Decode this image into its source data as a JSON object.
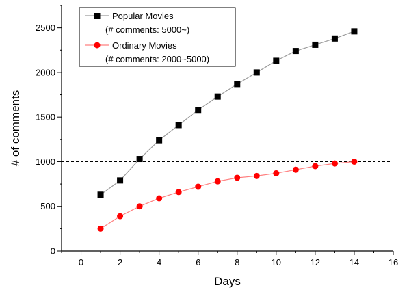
{
  "chart_data": {
    "type": "line",
    "xlabel": "Days",
    "ylabel": "# of comments",
    "xlim": [
      -1,
      16
    ],
    "ylim": [
      0,
      2750
    ],
    "xticks": [
      0,
      2,
      4,
      6,
      8,
      10,
      12,
      14,
      16
    ],
    "yticks": [
      0,
      500,
      1000,
      1500,
      2000,
      2500
    ],
    "reference_line": {
      "y": 1000,
      "style": "dashed",
      "color": "#000000"
    },
    "legend_position": "top-left",
    "series": [
      {
        "name": "Popular Movies",
        "legend_subtitle": "(# comments: 5000~)",
        "marker": "square",
        "marker_color": "#000000",
        "line_color": "#9a9a9a",
        "x": [
          1,
          2,
          3,
          4,
          5,
          6,
          7,
          8,
          9,
          10,
          11,
          12,
          13,
          14
        ],
        "y": [
          630,
          790,
          1030,
          1240,
          1410,
          1580,
          1730,
          1870,
          2000,
          2130,
          2240,
          2310,
          2380,
          2460
        ]
      },
      {
        "name": "Ordinary Movies",
        "legend_subtitle": "(# comments: 2000~5000)",
        "marker": "circle",
        "marker_color": "#ff0000",
        "line_color": "#ff8080",
        "x": [
          1,
          2,
          3,
          4,
          5,
          6,
          7,
          8,
          9,
          10,
          11,
          12,
          13,
          14
        ],
        "y": [
          250,
          390,
          500,
          590,
          660,
          720,
          780,
          820,
          840,
          870,
          910,
          950,
          980,
          1000
        ]
      }
    ]
  }
}
